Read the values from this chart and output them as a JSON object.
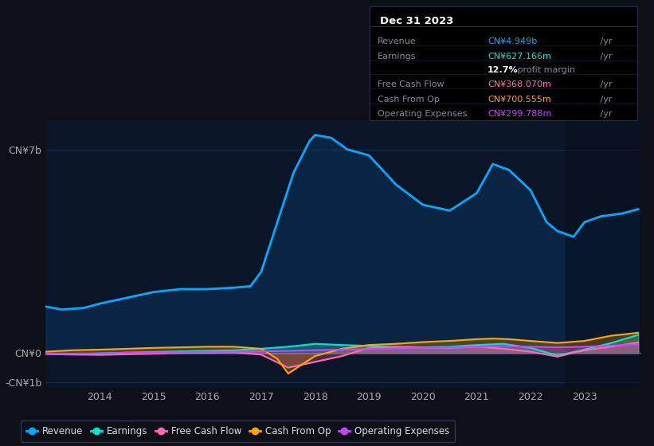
{
  "bg_color": "#0d1117",
  "plot_bg": "#0a1628",
  "title": "Dec 31 2023",
  "tooltip": {
    "Revenue": {
      "value": "CN¥4.949b /yr",
      "color": "#00aaff"
    },
    "Earnings": {
      "value": "CN¥627.166m /yr",
      "color": "#00e5cc"
    },
    "profit_margin": "12.7% profit margin",
    "Free Cash Flow": {
      "value": "CN¥368.070m /yr",
      "color": "#ff69b4"
    },
    "Cash From Op": {
      "value": "CN¥700.555m /yr",
      "color": "#ffa500"
    },
    "Operating Expenses": {
      "value": "CN¥299.788m /yr",
      "color": "#cc44ff"
    }
  },
  "ylim": [
    -1200000000.0,
    8000000000.0
  ],
  "yticks": [
    -1000000000.0,
    0,
    7000000000.0
  ],
  "ytick_labels": [
    "-CN¥1b",
    "CN¥0",
    "CN¥7b"
  ],
  "xlabel_years": [
    "2014",
    "2015",
    "2016",
    "2017",
    "2018",
    "2019",
    "2020",
    "2021",
    "2022",
    "2023"
  ],
  "legend": [
    {
      "label": "Revenue",
      "color": "#00aaff"
    },
    {
      "label": "Earnings",
      "color": "#00e5cc"
    },
    {
      "label": "Free Cash Flow",
      "color": "#ff69b4"
    },
    {
      "label": "Cash From Op",
      "color": "#ffa500"
    },
    {
      "label": "Operating Expenses",
      "color": "#cc44ff"
    }
  ],
  "revenue_x": [
    2013.0,
    2013.3,
    2013.7,
    2014.0,
    2014.5,
    2015.0,
    2015.5,
    2016.0,
    2016.5,
    2016.8,
    2017.0,
    2017.3,
    2017.6,
    2017.9,
    2018.0,
    2018.3,
    2018.6,
    2019.0,
    2019.5,
    2020.0,
    2020.5,
    2021.0,
    2021.3,
    2021.6,
    2022.0,
    2022.3,
    2022.5,
    2022.8,
    2023.0,
    2023.3,
    2023.7,
    2024.0
  ],
  "revenue_y": [
    1600000000.0,
    1500000000.0,
    1550000000.0,
    1700000000.0,
    1900000000.0,
    2100000000.0,
    2200000000.0,
    2200000000.0,
    2250000000.0,
    2300000000.0,
    2800000000.0,
    4500000000.0,
    6200000000.0,
    7300000000.0,
    7500000000.0,
    7400000000.0,
    7000000000.0,
    6800000000.0,
    5800000000.0,
    5100000000.0,
    4900000000.0,
    5500000000.0,
    6500000000.0,
    6300000000.0,
    5600000000.0,
    4500000000.0,
    4200000000.0,
    4000000000.0,
    4500000000.0,
    4700000000.0,
    4800000000.0,
    4949000000.0
  ],
  "earnings_x": [
    2013.0,
    2013.5,
    2014.0,
    2014.5,
    2015.0,
    2015.5,
    2016.0,
    2016.5,
    2017.0,
    2017.5,
    2018.0,
    2018.5,
    2019.0,
    2019.5,
    2020.0,
    2020.5,
    2021.0,
    2021.5,
    2022.0,
    2022.5,
    2023.0,
    2023.5,
    2024.0
  ],
  "earnings_y": [
    -20000000.0,
    -30000000.0,
    -10000000.0,
    20000000.0,
    40000000.0,
    60000000.0,
    80000000.0,
    100000000.0,
    150000000.0,
    220000000.0,
    320000000.0,
    280000000.0,
    250000000.0,
    200000000.0,
    200000000.0,
    220000000.0,
    280000000.0,
    320000000.0,
    180000000.0,
    -80000000.0,
    120000000.0,
    350000000.0,
    627000000.0
  ],
  "fcf_x": [
    2013.0,
    2013.5,
    2014.0,
    2014.5,
    2015.0,
    2015.5,
    2016.0,
    2016.5,
    2017.0,
    2017.5,
    2018.0,
    2018.5,
    2019.0,
    2019.5,
    2020.0,
    2020.5,
    2021.0,
    2021.5,
    2022.0,
    2022.5,
    2023.0,
    2023.5,
    2024.0
  ],
  "fcf_y": [
    -30000000.0,
    -50000000.0,
    -60000000.0,
    -40000000.0,
    -20000000.0,
    10000000.0,
    20000000.0,
    30000000.0,
    -50000000.0,
    -500000000.0,
    -300000000.0,
    -100000000.0,
    180000000.0,
    220000000.0,
    200000000.0,
    180000000.0,
    220000000.0,
    150000000.0,
    50000000.0,
    -120000000.0,
    100000000.0,
    220000000.0,
    368000000.0
  ],
  "cashop_x": [
    2013.0,
    2013.5,
    2014.0,
    2014.5,
    2015.0,
    2015.5,
    2016.0,
    2016.5,
    2017.0,
    2017.3,
    2017.5,
    2018.0,
    2018.5,
    2019.0,
    2019.5,
    2020.0,
    2020.5,
    2021.0,
    2021.3,
    2021.6,
    2022.0,
    2022.5,
    2023.0,
    2023.5,
    2024.0
  ],
  "cashop_y": [
    50000000.0,
    100000000.0,
    120000000.0,
    150000000.0,
    180000000.0,
    200000000.0,
    220000000.0,
    220000000.0,
    150000000.0,
    -200000000.0,
    -700000000.0,
    -100000000.0,
    150000000.0,
    280000000.0,
    320000000.0,
    380000000.0,
    420000000.0,
    480000000.0,
    500000000.0,
    480000000.0,
    420000000.0,
    350000000.0,
    420000000.0,
    600000000.0,
    700000000.0
  ],
  "opex_x": [
    2013.0,
    2013.5,
    2014.0,
    2014.5,
    2015.0,
    2015.5,
    2016.0,
    2016.5,
    2017.0,
    2017.5,
    2018.0,
    2018.5,
    2019.0,
    2019.5,
    2020.0,
    2020.5,
    2021.0,
    2021.5,
    2022.0,
    2022.5,
    2023.0,
    2023.5,
    2024.0
  ],
  "opex_y": [
    -10000000.0,
    -20000000.0,
    -10000000.0,
    10000000.0,
    20000000.0,
    30000000.0,
    40000000.0,
    50000000.0,
    60000000.0,
    80000000.0,
    100000000.0,
    120000000.0,
    140000000.0,
    160000000.0,
    180000000.0,
    200000000.0,
    220000000.0,
    240000000.0,
    220000000.0,
    200000000.0,
    220000000.0,
    260000000.0,
    300000000.0
  ],
  "shade_x_start": 2022.65,
  "shade_x_end": 2024.05,
  "xmin": 2013.0,
  "xmax": 2024.05
}
